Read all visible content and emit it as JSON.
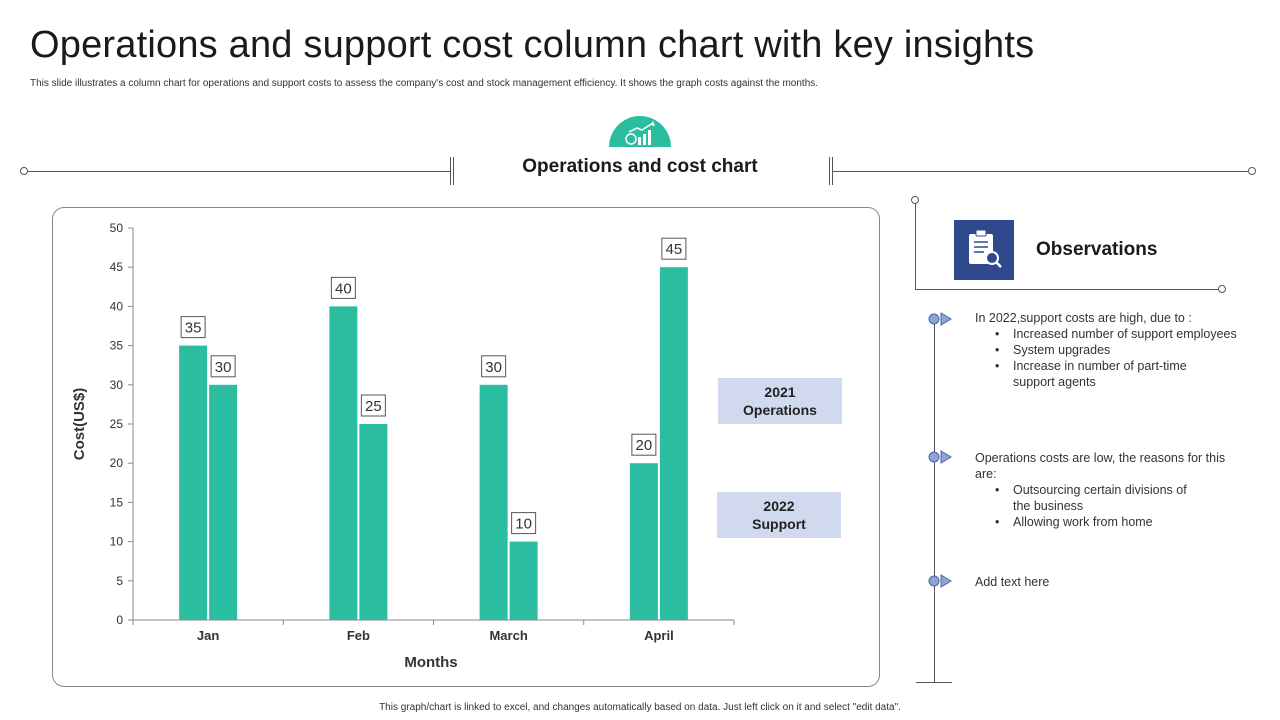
{
  "title": "Operations and support cost column chart with key insights",
  "subtitle": "This slide illustrates a column  chart for operations and support costs to assess the company's cost and stock management  efficiency. It shows the graph costs against the months.",
  "section_title": "Operations and cost chart",
  "legend": {
    "item1": {
      "line1": "2021",
      "line2": "Operations"
    },
    "item2": {
      "line1": "2022",
      "line2": "Support"
    }
  },
  "observations": {
    "title": "Observations",
    "block1": {
      "intro": "In 2022,support costs are high, due to :",
      "bullets": [
        "Increased number of support employees",
        "System upgrades",
        "Increase in number of part-time",
        "support agents"
      ]
    },
    "block2": {
      "intro_line1": "Operations costs are low, the reasons for this",
      "intro_line2": "are:",
      "bullets": [
        "Outsourcing certain divisions of",
        "the business",
        "Allowing work from home"
      ]
    },
    "block3": {
      "text": "Add text here"
    }
  },
  "footer": "This graph/chart is linked to excel, and changes automatically based on data. Just left click on it and select \"edit data\".",
  "colors": {
    "accent": "#2bbd9f",
    "legend_fill": "#d1d9ef",
    "icon_blue": "#2e4a8c"
  },
  "icons": {
    "header": "money-growth-chart-icon",
    "observations": "clipboard-magnifier-icon",
    "timeline_marker": "play-arrow-icon"
  },
  "chart_data": {
    "type": "bar",
    "categories": [
      "Jan",
      "Feb",
      "March",
      "April"
    ],
    "series": [
      {
        "values": [
          35,
          40,
          30,
          20
        ]
      },
      {
        "values": [
          30,
          25,
          10,
          45
        ]
      }
    ],
    "xlabel": "Months",
    "ylabel": "Cost(US$)",
    "ylim": [
      0,
      50
    ],
    "yticks": [
      0,
      5,
      10,
      15,
      20,
      25,
      30,
      35,
      40,
      45,
      50
    ],
    "grid": false,
    "data_labels": true
  }
}
